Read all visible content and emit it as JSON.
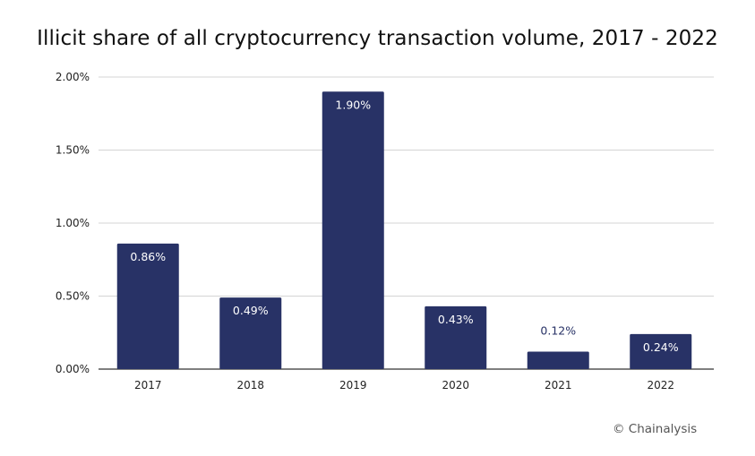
{
  "chart_data": {
    "type": "bar",
    "title": "Illicit share of all cryptocurrency transaction volume, 2017 - 2022",
    "categories": [
      "2017",
      "2018",
      "2019",
      "2020",
      "2021",
      "2022"
    ],
    "values": [
      0.86,
      0.49,
      1.9,
      0.43,
      0.12,
      0.24
    ],
    "value_labels": [
      "0.86%",
      "0.49%",
      "1.90%",
      "0.43%",
      "0.12%",
      "0.24%"
    ],
    "ylim": [
      0,
      2.0
    ],
    "yticks": [
      0,
      0.5,
      1.0,
      1.5,
      2.0
    ],
    "ytick_labels": [
      "0.00%",
      "0.50%",
      "1.00%",
      "1.50%",
      "2.00%"
    ],
    "xlabel": "",
    "ylabel": "",
    "grid": true,
    "bar_color": "#283266",
    "label_inside_color": "#ffffff",
    "label_outside_color": "#283266"
  },
  "credit": "© Chainalysis"
}
